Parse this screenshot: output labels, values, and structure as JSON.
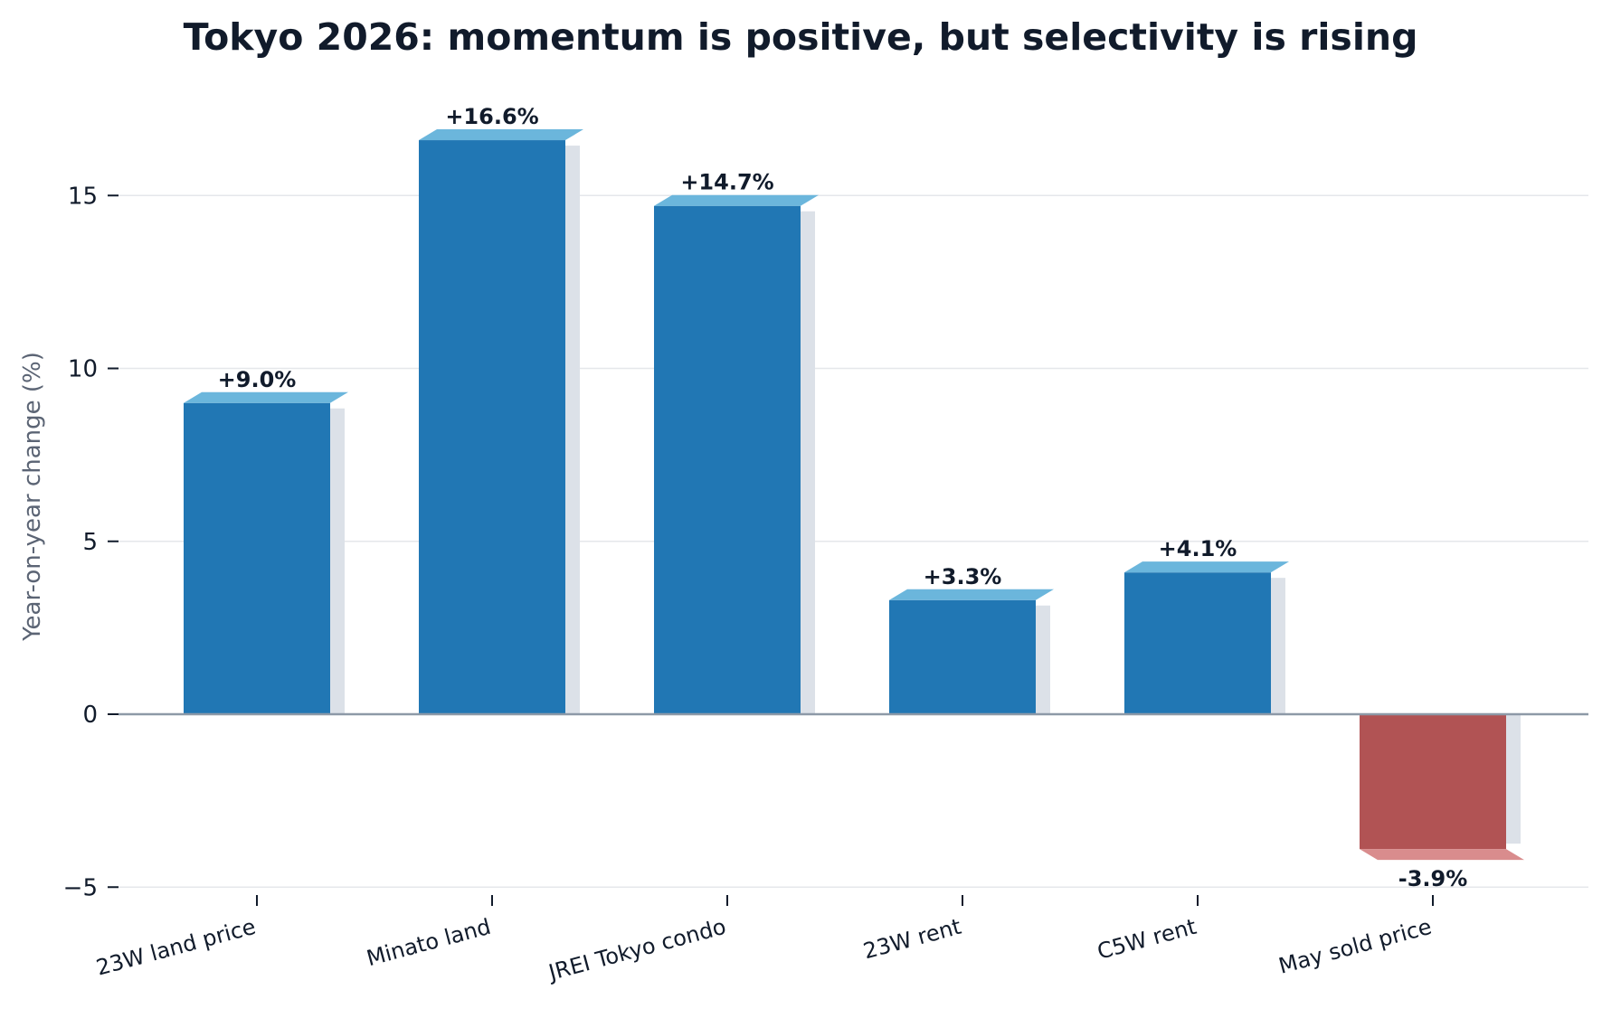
{
  "chart_data": {
    "type": "bar",
    "title": "Tokyo 2026: momentum is positive, but selectivity is rising",
    "xlabel": "",
    "ylabel": "Year-on-year change (%)",
    "ylim": [
      -5,
      18
    ],
    "yticks": [
      {
        "value": -5,
        "label": "−5"
      },
      {
        "value": 0,
        "label": "0"
      },
      {
        "value": 5,
        "label": "5"
      },
      {
        "value": 10,
        "label": "10"
      },
      {
        "value": 15,
        "label": "15"
      }
    ],
    "grid": true,
    "categories": [
      "23W land price",
      "Minato land",
      "JREI Tokyo condo",
      "23W rent",
      "C5W rent",
      "May sold price"
    ],
    "values": [
      9.0,
      16.6,
      14.7,
      3.3,
      4.1,
      -3.9
    ],
    "data_labels": [
      "+9.0%",
      "+16.6%",
      "+14.7%",
      "+3.3%",
      "+4.1%",
      "-3.9%"
    ],
    "colors": {
      "positive": "#2177b4",
      "positive_cap": "#6bb6dc",
      "negative": "#b15354",
      "negative_cap": "#d98c8d",
      "shadow": "#dce1e8",
      "grid": "#e5e7eb",
      "zero_line": "#8d99a7"
    }
  }
}
